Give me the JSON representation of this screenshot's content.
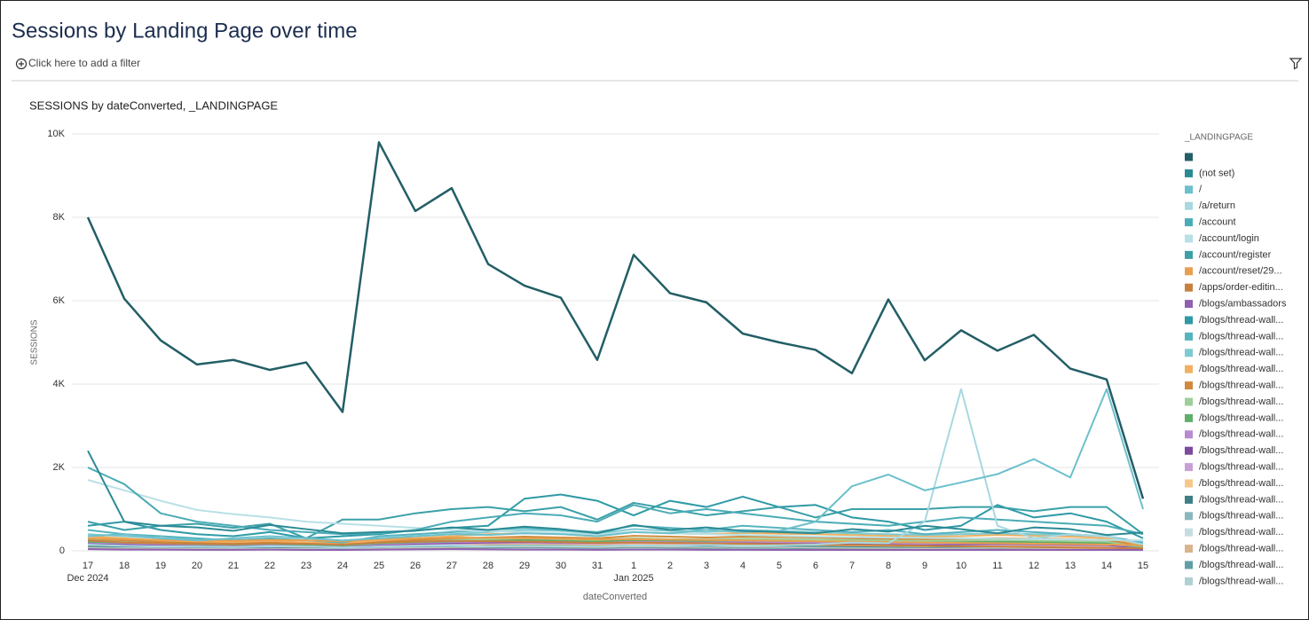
{
  "header": {
    "title": "Sessions by Landing Page over time",
    "filter": "Click here to add a filter"
  },
  "chart_data": {
    "type": "line",
    "title": "SESSIONS by dateConverted, _LANDINGPAGE",
    "x_label": "dateConverted",
    "y_label": "SESSIONS",
    "legend_title": "_LANDINGPAGE",
    "legend": "right",
    "grid": true,
    "categories": [
      "17",
      "18",
      "19",
      "20",
      "21",
      "22",
      "23",
      "24",
      "25",
      "26",
      "27",
      "28",
      "29",
      "30",
      "31",
      "1",
      "2",
      "3",
      "4",
      "5",
      "6",
      "7",
      "8",
      "9",
      "10",
      "11",
      "12",
      "13",
      "14",
      "15"
    ],
    "months": [
      {
        "label": "Dec 2024",
        "start": "17"
      },
      {
        "label": "Jan 2025",
        "start": "1"
      }
    ],
    "ylim": [
      0,
      10000
    ],
    "yticks": [
      0,
      {
        "value": 2000,
        "label": "2K"
      },
      {
        "value": 4000,
        "label": "4K"
      },
      {
        "value": 6000,
        "label": "6K"
      },
      {
        "value": 8000,
        "label": "8K"
      },
      {
        "value": 10000,
        "label": "10K"
      }
    ],
    "series": [
      {
        "name": null,
        "color": "#235e66",
        "values": [
          8000,
          6050,
          5050,
          4470,
          4580,
          4340,
          4520,
          3330,
          9800,
          8150,
          8700,
          6880,
          6360,
          6070,
          4580,
          7100,
          6180,
          5960,
          5210,
          5000,
          4820,
          4260,
          6030,
          4570,
          5290,
          4800,
          5180,
          4370,
          4110,
          1250
        ]
      },
      {
        "name": "(not set)",
        "color": "#2a8a94",
        "values": [
          2400,
          700,
          600,
          560,
          480,
          620,
          520,
          420,
          450,
          480,
          560,
          500,
          580,
          520,
          420,
          620,
          500,
          560,
          480,
          450,
          420,
          520,
          460,
          600,
          520,
          420,
          560,
          520,
          380,
          440
        ]
      },
      {
        "name": "/",
        "color": "#6cc0cc",
        "values": [
          350,
          400,
          300,
          250,
          300,
          350,
          300,
          250,
          300,
          350,
          400,
          380,
          420,
          400,
          350,
          450,
          420,
          500,
          450,
          480,
          700,
          1550,
          1830,
          1450,
          1640,
          1840,
          2200,
          1760,
          3880,
          1000
        ]
      },
      {
        "name": "/a/return",
        "color": "#a8d8e0",
        "values": [
          150,
          120,
          100,
          100,
          90,
          110,
          100,
          80,
          100,
          120,
          130,
          110,
          120,
          110,
          100,
          130,
          120,
          140,
          120,
          130,
          150,
          200,
          180,
          700,
          3880,
          600,
          300,
          400,
          350,
          150
        ]
      },
      {
        "name": "/account",
        "color": "#4aacb6",
        "values": [
          2000,
          1600,
          900,
          700,
          600,
          500,
          450,
          400,
          420,
          500,
          700,
          800,
          900,
          850,
          700,
          1100,
          900,
          1000,
          900,
          800,
          700,
          650,
          600,
          700,
          800,
          750,
          700,
          650,
          600,
          400
        ]
      },
      {
        "name": "/account/login",
        "color": "#b8e0e6",
        "values": [
          1700,
          1450,
          1200,
          980,
          880,
          800,
          700,
          650,
          600,
          550,
          500,
          480,
          450,
          420,
          400,
          450,
          420,
          400,
          380,
          360,
          340,
          330,
          320,
          310,
          300,
          290,
          280,
          270,
          260,
          250
        ]
      },
      {
        "name": "/account/register",
        "color": "#3ba0a8",
        "values": [
          700,
          500,
          600,
          650,
          550,
          650,
          300,
          750,
          750,
          900,
          1000,
          1050,
          950,
          1050,
          750,
          1150,
          1000,
          850,
          950,
          1050,
          800,
          1000,
          1000,
          1000,
          1050,
          1050,
          950,
          1050,
          1050,
          400
        ]
      },
      {
        "name": "/account/reset/29...",
        "color": "#e8a050",
        "values": [
          300,
          280,
          260,
          250,
          240,
          260,
          250,
          230,
          280,
          300,
          320,
          310,
          300,
          290,
          270,
          280,
          270,
          260,
          250,
          240,
          230,
          220,
          210,
          200,
          190,
          180,
          170,
          160,
          150,
          140
        ]
      },
      {
        "name": "/apps/order-editin...",
        "color": "#c88040",
        "values": [
          250,
          200,
          180,
          170,
          160,
          180,
          170,
          150,
          200,
          220,
          240,
          230,
          220,
          210,
          190,
          200,
          190,
          180,
          170,
          160,
          150,
          140,
          130,
          120,
          110,
          100,
          90,
          80,
          70,
          60
        ]
      },
      {
        "name": "/blogs/ambassadors",
        "color": "#9060b0",
        "values": [
          40,
          30,
          30,
          25,
          25,
          30,
          20,
          20,
          30,
          35,
          40,
          35,
          30,
          30,
          25,
          30,
          30,
          25,
          25,
          20,
          20,
          20,
          20,
          20,
          20,
          20,
          20,
          20,
          20,
          20
        ]
      },
      {
        "name": "/blogs/thread-wall...",
        "color": "#2e9aa6",
        "values": [
          600,
          700,
          500,
          400,
          350,
          450,
          300,
          350,
          400,
          500,
          550,
          600,
          1250,
          1350,
          1200,
          850,
          1200,
          1050,
          1300,
          1050,
          1100,
          800,
          700,
          500,
          600,
          1100,
          800,
          900,
          700,
          300
        ]
      },
      {
        "name": "/blogs/thread-wall...",
        "color": "#56b4be",
        "values": [
          500,
          400,
          350,
          300,
          250,
          300,
          250,
          200,
          350,
          400,
          450,
          500,
          550,
          500,
          450,
          600,
          550,
          500,
          600,
          550,
          500,
          450,
          500,
          400,
          450,
          500,
          450,
          400,
          350,
          200
        ]
      },
      {
        "name": "/blogs/thread-wall...",
        "color": "#7fcad2",
        "values": [
          400,
          350,
          300,
          280,
          260,
          280,
          250,
          220,
          300,
          350,
          400,
          450,
          500,
          480,
          420,
          520,
          480,
          450,
          500,
          480,
          450,
          420,
          400,
          380,
          400,
          420,
          400,
          380,
          350,
          180
        ]
      },
      {
        "name": "/blogs/thread-wall...",
        "color": "#f0b060",
        "values": [
          350,
          300,
          250,
          230,
          210,
          240,
          200,
          180,
          250,
          300,
          350,
          400,
          420,
          400,
          350,
          450,
          420,
          400,
          430,
          410,
          400,
          380,
          360,
          340,
          350,
          380,
          360,
          340,
          300,
          150
        ]
      },
      {
        "name": "/blogs/thread-wall...",
        "color": "#d08a3c",
        "values": [
          300,
          250,
          220,
          200,
          180,
          200,
          180,
          160,
          220,
          260,
          300,
          320,
          340,
          320,
          300,
          360,
          340,
          320,
          340,
          330,
          320,
          300,
          290,
          280,
          290,
          300,
          290,
          280,
          260,
          120
        ]
      },
      {
        "name": "/blogs/thread-wall...",
        "color": "#9ecf9a",
        "values": [
          260,
          220,
          200,
          180,
          170,
          190,
          170,
          150,
          200,
          240,
          260,
          280,
          300,
          280,
          260,
          300,
          280,
          270,
          290,
          280,
          270,
          260,
          250,
          240,
          250,
          260,
          250,
          240,
          220,
          100
        ]
      },
      {
        "name": "/blogs/thread-wall...",
        "color": "#5fae6a",
        "values": [
          220,
          200,
          180,
          160,
          150,
          170,
          150,
          130,
          180,
          210,
          230,
          250,
          260,
          250,
          230,
          260,
          250,
          240,
          250,
          240,
          230,
          220,
          210,
          200,
          210,
          220,
          210,
          200,
          190,
          90
        ]
      },
      {
        "name": "/blogs/thread-wall...",
        "color": "#b78bd0",
        "values": [
          200,
          180,
          160,
          150,
          140,
          150,
          140,
          120,
          160,
          190,
          210,
          220,
          230,
          220,
          210,
          230,
          220,
          210,
          220,
          210,
          200,
          190,
          180,
          170,
          180,
          190,
          180,
          170,
          160,
          80
        ]
      },
      {
        "name": "/blogs/thread-wall...",
        "color": "#7c4a9e",
        "values": [
          180,
          160,
          150,
          140,
          130,
          140,
          130,
          110,
          150,
          170,
          190,
          200,
          210,
          200,
          190,
          210,
          200,
          190,
          200,
          190,
          180,
          170,
          160,
          150,
          160,
          170,
          160,
          150,
          140,
          70
        ]
      },
      {
        "name": "/blogs/thread-wall...",
        "color": "#c8a0d8",
        "values": [
          160,
          150,
          140,
          130,
          120,
          130,
          120,
          100,
          140,
          160,
          170,
          180,
          190,
          180,
          170,
          190,
          180,
          170,
          180,
          170,
          160,
          150,
          140,
          130,
          140,
          150,
          140,
          130,
          120,
          60
        ]
      },
      {
        "name": "/blogs/thread-wall...",
        "color": "#f6c78a",
        "values": [
          140,
          130,
          120,
          110,
          100,
          110,
          100,
          90,
          120,
          140,
          150,
          160,
          170,
          160,
          150,
          170,
          160,
          150,
          160,
          150,
          140,
          130,
          120,
          110,
          120,
          130,
          120,
          110,
          100,
          50
        ]
      },
      {
        "name": "/blogs/thread-wall...",
        "color": "#3d7f86",
        "values": [
          120,
          110,
          100,
          95,
          90,
          95,
          90,
          80,
          100,
          120,
          130,
          140,
          150,
          140,
          130,
          150,
          140,
          130,
          140,
          130,
          120,
          110,
          100,
          95,
          100,
          110,
          100,
          95,
          90,
          45
        ]
      },
      {
        "name": "/blogs/thread-wall...",
        "color": "#8ab8bc",
        "values": [
          100,
          95,
          90,
          85,
          80,
          85,
          80,
          70,
          90,
          100,
          110,
          120,
          130,
          120,
          110,
          130,
          120,
          110,
          120,
          110,
          100,
          95,
          90,
          85,
          90,
          95,
          90,
          85,
          80,
          40
        ]
      },
      {
        "name": "/blogs/thread-wall...",
        "color": "#c5dde0",
        "values": [
          90,
          85,
          80,
          75,
          70,
          75,
          70,
          60,
          80,
          90,
          100,
          110,
          120,
          110,
          100,
          120,
          110,
          100,
          110,
          100,
          90,
          85,
          80,
          75,
          80,
          85,
          80,
          75,
          70,
          35
        ]
      },
      {
        "name": "/blogs/thread-wall...",
        "color": "#d9b38c",
        "values": [
          80,
          75,
          70,
          65,
          60,
          65,
          60,
          50,
          70,
          80,
          90,
          100,
          110,
          100,
          90,
          110,
          100,
          90,
          100,
          90,
          80,
          75,
          70,
          65,
          70,
          75,
          70,
          65,
          60,
          30
        ]
      },
      {
        "name": "/blogs/thread-wall...",
        "color": "#5f9ea4",
        "values": [
          60,
          55,
          50,
          45,
          40,
          45,
          40,
          35,
          50,
          60,
          70,
          80,
          90,
          80,
          70,
          90,
          80,
          70,
          80,
          70,
          60,
          55,
          50,
          45,
          50,
          55,
          50,
          45,
          40,
          20
        ]
      },
      {
        "name": "/blogs/thread-wall...",
        "color": "#b0cfd2",
        "values": [
          40,
          35,
          30,
          30,
          25,
          30,
          25,
          20,
          30,
          40,
          50,
          60,
          70,
          60,
          50,
          70,
          60,
          50,
          60,
          50,
          40,
          35,
          30,
          30,
          30,
          35,
          30,
          30,
          25,
          15
        ]
      }
    ]
  }
}
